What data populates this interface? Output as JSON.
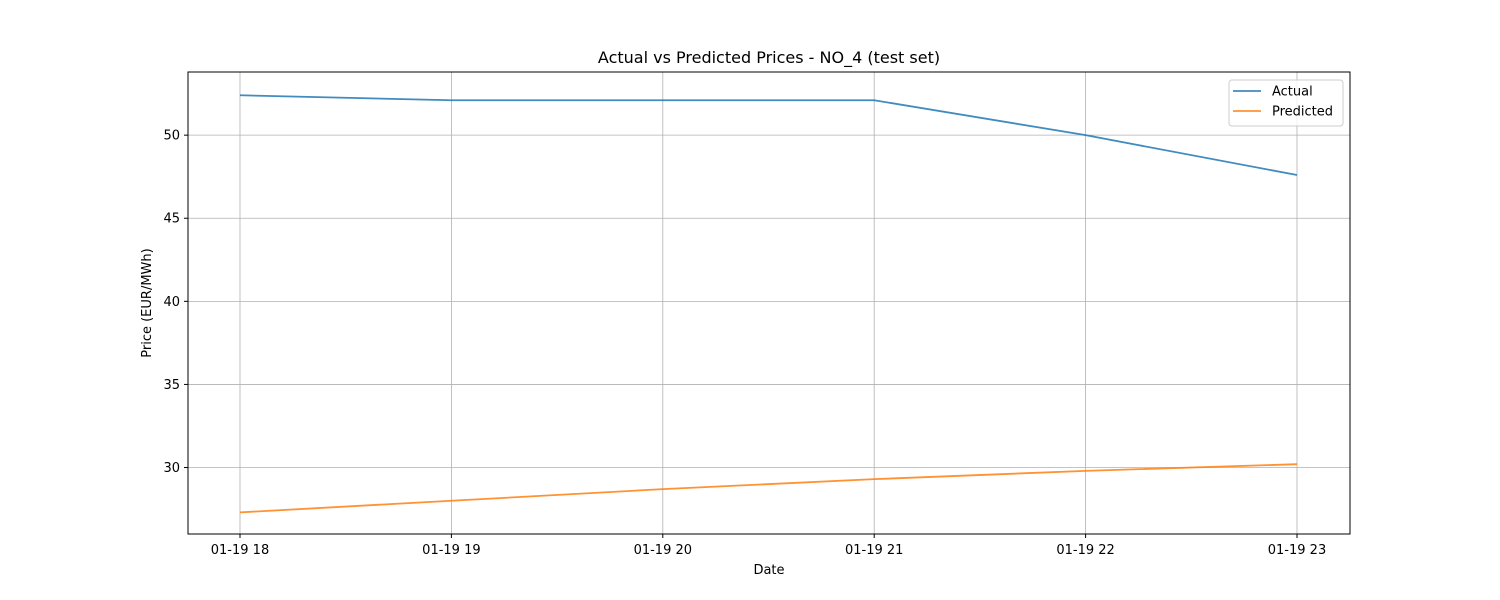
{
  "chart_data": {
    "type": "line",
    "title": "Actual vs Predicted Prices - NO_4 (test set)",
    "xlabel": "Date",
    "ylabel": "Price (EUR/MWh)",
    "x": [
      "01-19 18",
      "01-19 19",
      "01-19 20",
      "01-19 21",
      "01-19 22",
      "01-19 23"
    ],
    "y_ticks": [
      30,
      35,
      40,
      45,
      50
    ],
    "ylim": [
      26.0,
      53.8
    ],
    "grid": true,
    "legend_position": "top-right",
    "series": [
      {
        "name": "Actual",
        "color": "#1f77b4",
        "values": [
          52.4,
          52.1,
          52.1,
          52.1,
          50.0,
          47.6
        ]
      },
      {
        "name": "Predicted",
        "color": "#ff7f0e",
        "values": [
          27.3,
          28.0,
          28.7,
          29.3,
          29.8,
          30.2
        ]
      }
    ]
  }
}
